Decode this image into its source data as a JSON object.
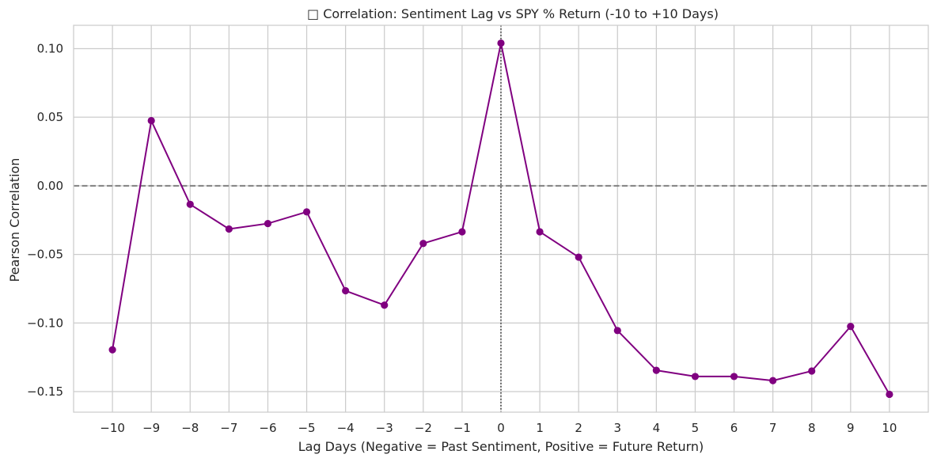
{
  "chart_data": {
    "type": "line",
    "title": "□ Correlation: Sentiment Lag vs SPY % Return (-10 to +10 Days)",
    "xlabel": "Lag Days (Negative = Past Sentiment, Positive = Future Return)",
    "ylabel": "Pearson Correlation",
    "x": [
      -10,
      -9,
      -8,
      -7,
      -6,
      -5,
      -4,
      -3,
      -2,
      -1,
      0,
      1,
      2,
      3,
      4,
      5,
      6,
      7,
      8,
      9,
      10
    ],
    "x_tick_labels": [
      "−10",
      "−9",
      "−8",
      "−7",
      "−6",
      "−5",
      "−4",
      "−3",
      "−2",
      "−1",
      "0",
      "1",
      "2",
      "3",
      "4",
      "5",
      "6",
      "7",
      "8",
      "9",
      "10"
    ],
    "series": [
      {
        "values": [
          -0.1195,
          0.0475,
          -0.0135,
          -0.0315,
          -0.0275,
          -0.019,
          -0.0765,
          -0.087,
          -0.042,
          -0.0335,
          0.104,
          -0.0335,
          -0.052,
          -0.1055,
          -0.1345,
          -0.139,
          -0.139,
          -0.142,
          -0.135,
          -0.1025,
          -0.152
        ],
        "color": "#800080"
      }
    ],
    "y_ticks": [
      0.1,
      0.05,
      0.0,
      -0.05,
      -0.1,
      -0.15
    ],
    "y_tick_labels": [
      "0.10",
      "0.05",
      "0.00",
      "−0.05",
      "−0.10",
      "−0.15"
    ],
    "xlim": [
      -11,
      11
    ],
    "ylim": [
      -0.165,
      0.117
    ],
    "grid": true,
    "reference_lines": {
      "horizontal_y": 0,
      "horizontal_style": "dashed",
      "horizontal_color": "#808080",
      "vertical_x": 0,
      "vertical_style": "dotted",
      "vertical_color": "#000000"
    },
    "colors": {
      "grid": "#cccccc",
      "frame": "#cccccc",
      "text": "#262626"
    }
  }
}
